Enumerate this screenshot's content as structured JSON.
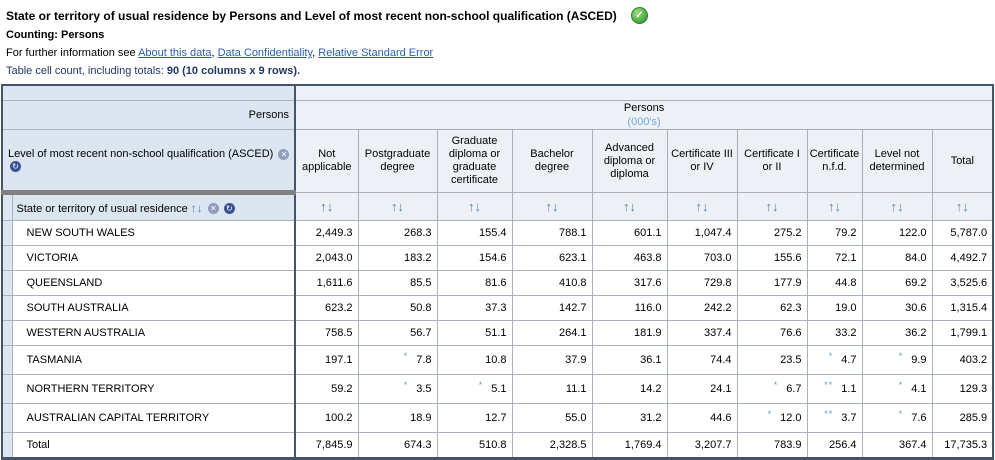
{
  "page": {
    "title": "State or territory of usual residence by Persons and Level of most recent non-school qualification (ASCED)",
    "counting": "Counting: Persons",
    "info_prefix": "For further information see ",
    "links": {
      "about": "About this data",
      "confidentiality": "Data Confidentiality",
      "rse": "Relative Standard Error"
    },
    "link_separator": ", ",
    "cell_count_label": "Table cell count, including totals:",
    "cell_count_value": "90 (10 columns x 9 rows)."
  },
  "icons": {
    "status_check": "✓",
    "sort_up": "↑",
    "sort_down": "↓",
    "hide_dimension": "✕",
    "rotate_dimension": "↻"
  },
  "table": {
    "measure": "Persons",
    "unit": "(000's)",
    "column_dimension": "Level of most recent non-school qualification (ASCED)",
    "row_dimension": "State or territory of usual residence",
    "columns": [
      "Not applicable",
      "Postgraduate degree",
      "Graduate diploma or graduate certificate",
      "Bachelor degree",
      "Advanced diploma or diploma",
      "Certificate III or IV",
      "Certificate I or II",
      "Certificate n.f.d.",
      "Level not determined",
      "Total"
    ],
    "rows": [
      {
        "label": "NEW SOUTH WALES",
        "cells": [
          {
            "v": "2,449.3"
          },
          {
            "v": "268.3"
          },
          {
            "v": "155.4"
          },
          {
            "v": "788.1"
          },
          {
            "v": "601.1"
          },
          {
            "v": "1,047.4"
          },
          {
            "v": "275.2"
          },
          {
            "v": "79.2"
          },
          {
            "v": "122.0"
          },
          {
            "v": "5,787.0"
          }
        ]
      },
      {
        "label": "VICTORIA",
        "cells": [
          {
            "v": "2,043.0"
          },
          {
            "v": "183.2"
          },
          {
            "v": "154.6"
          },
          {
            "v": "623.1"
          },
          {
            "v": "463.8"
          },
          {
            "v": "703.0"
          },
          {
            "v": "155.6"
          },
          {
            "v": "72.1"
          },
          {
            "v": "84.0"
          },
          {
            "v": "4,492.7"
          }
        ]
      },
      {
        "label": "QUEENSLAND",
        "cells": [
          {
            "v": "1,611.6"
          },
          {
            "v": "85.5"
          },
          {
            "v": "81.6"
          },
          {
            "v": "410.8"
          },
          {
            "v": "317.6"
          },
          {
            "v": "729.8"
          },
          {
            "v": "177.9"
          },
          {
            "v": "44.8"
          },
          {
            "v": "69.2"
          },
          {
            "v": "3,525.6"
          }
        ]
      },
      {
        "label": "SOUTH AUSTRALIA",
        "cells": [
          {
            "v": "623.2"
          },
          {
            "v": "50.8"
          },
          {
            "v": "37.3"
          },
          {
            "v": "142.7"
          },
          {
            "v": "116.0"
          },
          {
            "v": "242.2"
          },
          {
            "v": "62.3"
          },
          {
            "v": "19.0"
          },
          {
            "v": "30.6"
          },
          {
            "v": "1,315.4"
          }
        ]
      },
      {
        "label": "WESTERN AUSTRALIA",
        "cells": [
          {
            "v": "758.5"
          },
          {
            "v": "56.7"
          },
          {
            "v": "51.1"
          },
          {
            "v": "264.1"
          },
          {
            "v": "181.9"
          },
          {
            "v": "337.4"
          },
          {
            "v": "76.6"
          },
          {
            "v": "33.2"
          },
          {
            "v": "36.2"
          },
          {
            "v": "1,799.1"
          }
        ]
      },
      {
        "label": "TASMANIA",
        "cells": [
          {
            "v": "197.1"
          },
          {
            "v": "7.8",
            "a": "*"
          },
          {
            "v": "10.8"
          },
          {
            "v": "37.9"
          },
          {
            "v": "36.1"
          },
          {
            "v": "74.4"
          },
          {
            "v": "23.5"
          },
          {
            "v": "4.7",
            "a": "*"
          },
          {
            "v": "9.9",
            "a": "*"
          },
          {
            "v": "403.2"
          }
        ]
      },
      {
        "label": "NORTHERN TERRITORY",
        "cells": [
          {
            "v": "59.2"
          },
          {
            "v": "3.5",
            "a": "*"
          },
          {
            "v": "5.1",
            "a": "*"
          },
          {
            "v": "11.1"
          },
          {
            "v": "14.2"
          },
          {
            "v": "24.1"
          },
          {
            "v": "6.7",
            "a": "*"
          },
          {
            "v": "1.1",
            "a": "**"
          },
          {
            "v": "4.1",
            "a": "*"
          },
          {
            "v": "129.3"
          }
        ]
      },
      {
        "label": "AUSTRALIAN CAPITAL TERRITORY",
        "cells": [
          {
            "v": "100.2"
          },
          {
            "v": "18.9"
          },
          {
            "v": "12.7"
          },
          {
            "v": "55.0"
          },
          {
            "v": "31.2"
          },
          {
            "v": "44.6"
          },
          {
            "v": "12.0",
            "a": "*"
          },
          {
            "v": "3.7",
            "a": "**"
          },
          {
            "v": "7.6",
            "a": "*"
          },
          {
            "v": "285.9"
          }
        ]
      },
      {
        "label": "Total",
        "is_total": true,
        "cells": [
          {
            "v": "7,845.9"
          },
          {
            "v": "674.3"
          },
          {
            "v": "510.8"
          },
          {
            "v": "2,328.5"
          },
          {
            "v": "1,769.4"
          },
          {
            "v": "3,207.7"
          },
          {
            "v": "783.9"
          },
          {
            "v": "256.4"
          },
          {
            "v": "367.4"
          },
          {
            "v": "17,735.3"
          }
        ]
      }
    ]
  },
  "colors": {
    "outer_border_navy": "#44546a",
    "header_blue": "#dce6f1",
    "header_light": "#edf1f6",
    "thick_divider_gray": "#808080",
    "arrow_blue": "#4f81bd",
    "unit_blue": "#74a9d9",
    "annotation_blue": "#5b9bd5",
    "count_text_navy": "#1f3864",
    "link_blue": "#2a5db0",
    "check_green": "#47a63f"
  }
}
